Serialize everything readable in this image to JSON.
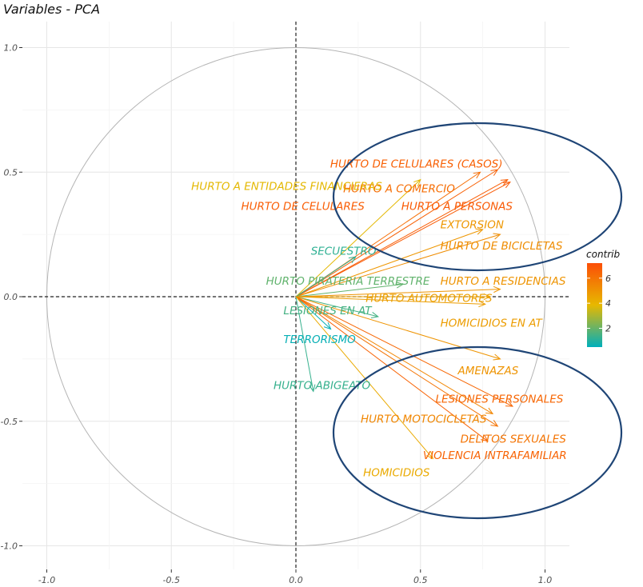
{
  "chart_data": {
    "type": "scatter",
    "title": "Variables - PCA",
    "xlim": [
      -1.1,
      1.1
    ],
    "ylim": [
      -1.1,
      1.1
    ],
    "x_ticks": [
      -1.0,
      -0.5,
      0.0,
      0.5,
      1.0
    ],
    "x_tick_labels": [
      "-1.0",
      "-0.5",
      "0.0",
      "0.5",
      "1.0"
    ],
    "y_ticks": [
      1.0,
      0.5,
      0.0,
      -0.5,
      -1.0
    ],
    "y_tick_labels": [
      "1.0",
      "0.5",
      "0.0",
      "-0.5",
      "-1.0"
    ],
    "grid": true,
    "legend": {
      "title": "contrib",
      "position": "right",
      "ticks": [
        6,
        4,
        2
      ],
      "tick_labels": [
        "6",
        "4",
        "2"
      ],
      "range": [
        0.5,
        7.2
      ],
      "colors": [
        "#00AFBB",
        "#E7B800",
        "#FC4E07"
      ]
    },
    "variables": [
      {
        "name": "HURTO DE CELULARES (CASOS)",
        "x": 0.81,
        "y": 0.51,
        "contrib": 6.6,
        "lx": 0.83,
        "ly": 0.535,
        "anchor": "end"
      },
      {
        "name": "HURTO A COMERCIO",
        "x": 0.74,
        "y": 0.5,
        "contrib": 6.2,
        "lx": 0.19,
        "ly": 0.435,
        "anchor": "start"
      },
      {
        "name": "HURTO DE CELULARES",
        "x": 0.85,
        "y": 0.47,
        "contrib": 6.7,
        "lx": -0.22,
        "ly": 0.365,
        "anchor": "start"
      },
      {
        "name": "HURTO A PERSONAS",
        "x": 0.86,
        "y": 0.46,
        "contrib": 6.8,
        "lx": 0.87,
        "ly": 0.365,
        "anchor": "end"
      },
      {
        "name": "HURTO A ENTIDADES FINANCIERAS",
        "x": 0.5,
        "y": 0.47,
        "contrib": 3.8,
        "lx": -0.42,
        "ly": 0.445,
        "anchor": "start"
      },
      {
        "name": "EXTORSION",
        "x": 0.75,
        "y": 0.27,
        "contrib": 4.9,
        "lx": 0.58,
        "ly": 0.29,
        "anchor": "start"
      },
      {
        "name": "HURTO DE BICICLETAS",
        "x": 0.82,
        "y": 0.25,
        "contrib": 5.2,
        "lx": 0.58,
        "ly": 0.205,
        "anchor": "start"
      },
      {
        "name": "SECUESTRO",
        "x": 0.24,
        "y": 0.16,
        "contrib": 1.2,
        "lx": 0.06,
        "ly": 0.185,
        "anchor": "start"
      },
      {
        "name": "HURTO PIRATERIA TERRESTRE",
        "x": 0.43,
        "y": 0.05,
        "contrib": 1.9,
        "lx": -0.12,
        "ly": 0.065,
        "anchor": "start"
      },
      {
        "name": "HURTO A RESIDENCIAS",
        "x": 0.82,
        "y": 0.03,
        "contrib": 5.0,
        "lx": 0.58,
        "ly": 0.065,
        "anchor": "start"
      },
      {
        "name": "HURTO AUTOMOTORES",
        "x": 0.78,
        "y": 0.0,
        "contrib": 4.6,
        "lx": 0.28,
        "ly": -0.005,
        "anchor": "start"
      },
      {
        "name": "LESIONES EN AT",
        "x": 0.33,
        "y": -0.08,
        "contrib": 1.5,
        "lx": -0.05,
        "ly": -0.055,
        "anchor": "start"
      },
      {
        "name": "HOMICIDIOS EN AT",
        "x": 0.76,
        "y": -0.03,
        "contrib": 4.7,
        "lx": 0.58,
        "ly": -0.105,
        "anchor": "start"
      },
      {
        "name": "TERRORISMO",
        "x": 0.14,
        "y": -0.13,
        "contrib": 0.6,
        "lx": -0.05,
        "ly": -0.17,
        "anchor": "start"
      },
      {
        "name": "AMENAZAS",
        "x": 0.82,
        "y": -0.25,
        "contrib": 5.0,
        "lx": 0.65,
        "ly": -0.295,
        "anchor": "start"
      },
      {
        "name": "HURTO ABIGEATO",
        "x": 0.07,
        "y": -0.38,
        "contrib": 1.3,
        "lx": -0.09,
        "ly": -0.355,
        "anchor": "start"
      },
      {
        "name": "LESIONES PERSONALES",
        "x": 0.87,
        "y": -0.44,
        "contrib": 6.4,
        "lx": 0.56,
        "ly": -0.41,
        "anchor": "start"
      },
      {
        "name": "HURTO MOTOCICLETAS",
        "x": 0.79,
        "y": -0.47,
        "contrib": 5.4,
        "lx": 0.26,
        "ly": -0.49,
        "anchor": "start"
      },
      {
        "name": "DELITOS SEXUALES",
        "x": 0.81,
        "y": -0.52,
        "contrib": 6.0,
        "lx": 0.66,
        "ly": -0.57,
        "anchor": "start"
      },
      {
        "name": "VIOLENCIA INTRAFAMILIAR",
        "x": 0.77,
        "y": -0.58,
        "contrib": 6.5,
        "lx": 0.51,
        "ly": -0.635,
        "anchor": "start"
      },
      {
        "name": "HOMICIDIOS",
        "x": 0.55,
        "y": -0.65,
        "contrib": 4.3,
        "lx": 0.27,
        "ly": -0.705,
        "anchor": "start"
      }
    ]
  }
}
